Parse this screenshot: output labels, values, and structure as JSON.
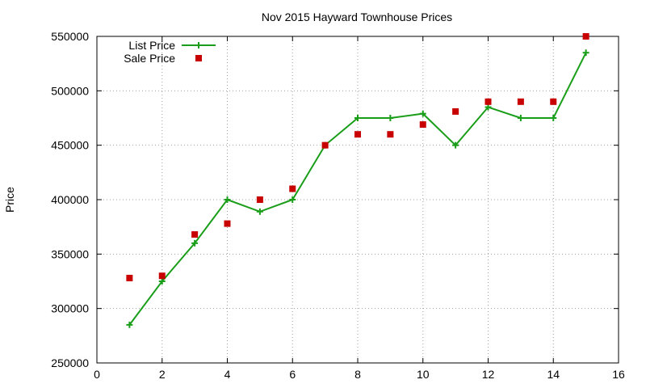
{
  "chart_data": {
    "type": "line",
    "title": "Nov 2015 Hayward Townhouse Prices",
    "xlabel": "",
    "ylabel": "Price",
    "xlim": [
      0,
      16
    ],
    "ylim": [
      250000,
      550000
    ],
    "x_ticks": [
      0,
      2,
      4,
      6,
      8,
      10,
      12,
      14,
      16
    ],
    "y_ticks": [
      250000,
      300000,
      350000,
      400000,
      450000,
      500000,
      550000
    ],
    "x_tick_labels": [
      "0",
      "2",
      "4",
      "6",
      "8",
      "10",
      "12",
      "14",
      "16"
    ],
    "y_tick_labels": [
      "250000",
      "300000",
      "350000",
      "400000",
      "450000",
      "500000",
      "550000"
    ],
    "grid": true,
    "legend_position": "top-left",
    "series": [
      {
        "name": "List Price",
        "kind": "line",
        "marker": "plus",
        "color": "#1a9e1a",
        "x": [
          1,
          2,
          3,
          4,
          5,
          6,
          7,
          8,
          9,
          10,
          11,
          12,
          13,
          14,
          15
        ],
        "y": [
          285000,
          325000,
          360000,
          400000,
          389000,
          400000,
          450000,
          475000,
          475000,
          479000,
          450000,
          485000,
          475000,
          475000,
          535000
        ]
      },
      {
        "name": "Sale Price",
        "kind": "scatter",
        "marker": "square",
        "color": "#c80000",
        "x": [
          1,
          2,
          3,
          4,
          5,
          6,
          7,
          8,
          9,
          10,
          11,
          12,
          13,
          14,
          15
        ],
        "y": [
          328000,
          330000,
          368000,
          378000,
          400000,
          410000,
          450000,
          460000,
          460000,
          469000,
          481000,
          490000,
          490000,
          490000,
          550000
        ]
      }
    ]
  }
}
